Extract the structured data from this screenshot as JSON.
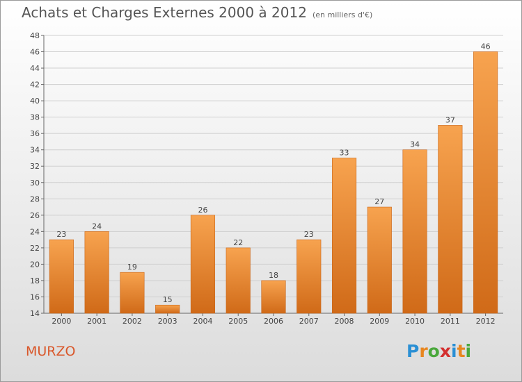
{
  "header": {
    "title": "Achats et Charges Externes 2000 à 2012",
    "subtitle": "(en milliers d'€)"
  },
  "footer": {
    "commune": "MURZO",
    "logo": {
      "text": "Proxiti",
      "letter_colors": [
        "#2a8fd4",
        "#e8861f",
        "#4aa83c",
        "#d32f2f",
        "#2a8fd4",
        "#e8861f",
        "#4aa83c"
      ]
    }
  },
  "chart_data": {
    "type": "bar",
    "categories": [
      "2000",
      "2001",
      "2002",
      "2003",
      "2004",
      "2005",
      "2006",
      "2007",
      "2008",
      "2009",
      "2010",
      "2011",
      "2012"
    ],
    "values": [
      23,
      24,
      19,
      15,
      26,
      22,
      18,
      23,
      33,
      27,
      34,
      37,
      46
    ],
    "ylim": [
      14,
      48
    ],
    "yticks": [
      14,
      16,
      18,
      20,
      22,
      24,
      26,
      28,
      30,
      32,
      34,
      36,
      38,
      40,
      42,
      44,
      46,
      48
    ],
    "grid": true,
    "bar_color_top": "#f7a34f",
    "bar_color_bottom": "#d06a18"
  }
}
